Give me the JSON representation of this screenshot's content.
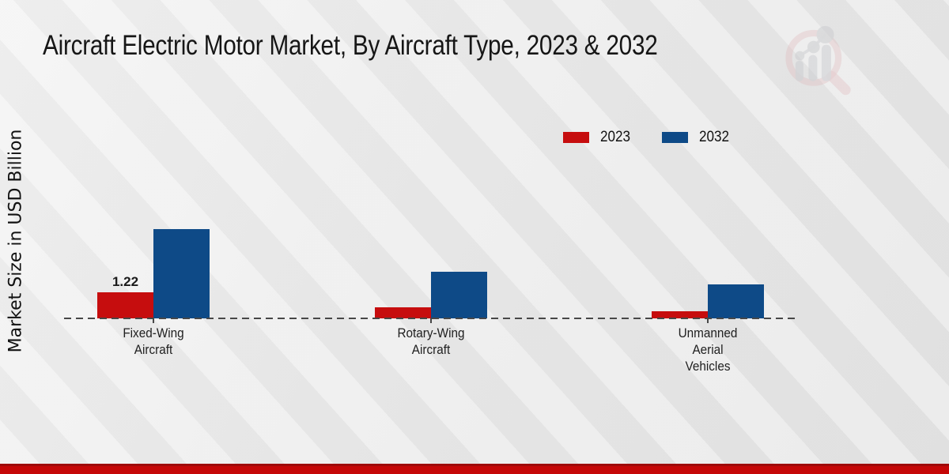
{
  "page": {
    "title": "Aircraft Electric Motor Market, By Aircraft Type, 2023 & 2032"
  },
  "chart_data": {
    "type": "bar",
    "title": "Aircraft Electric Motor Market, By Aircraft Type, 2023 & 2032",
    "ylabel": "Market Size in USD Billion",
    "xlabel": "",
    "categories": [
      "Fixed-Wing\nAircraft",
      "Rotary-Wing\nAircraft",
      "Unmanned\nAerial\nVehicles"
    ],
    "series": [
      {
        "name": "2023",
        "color": "#c60d0e",
        "values": [
          1.22,
          0.5,
          0.33
        ],
        "data_labels": [
          "1.22",
          "",
          ""
        ]
      },
      {
        "name": "2032",
        "color": "#0e4a87",
        "values": [
          4.2,
          2.2,
          1.58
        ],
        "data_labels": [
          "",
          "",
          ""
        ]
      }
    ],
    "ylim": [
      0,
      4.6
    ],
    "grid": false,
    "legend_position": "top-right",
    "baseline_style": "dashed"
  },
  "branding": {
    "logo": "magnifier-bar-chart-watermark",
    "accent_red": "#c50707",
    "footer_color": "#c50707"
  }
}
